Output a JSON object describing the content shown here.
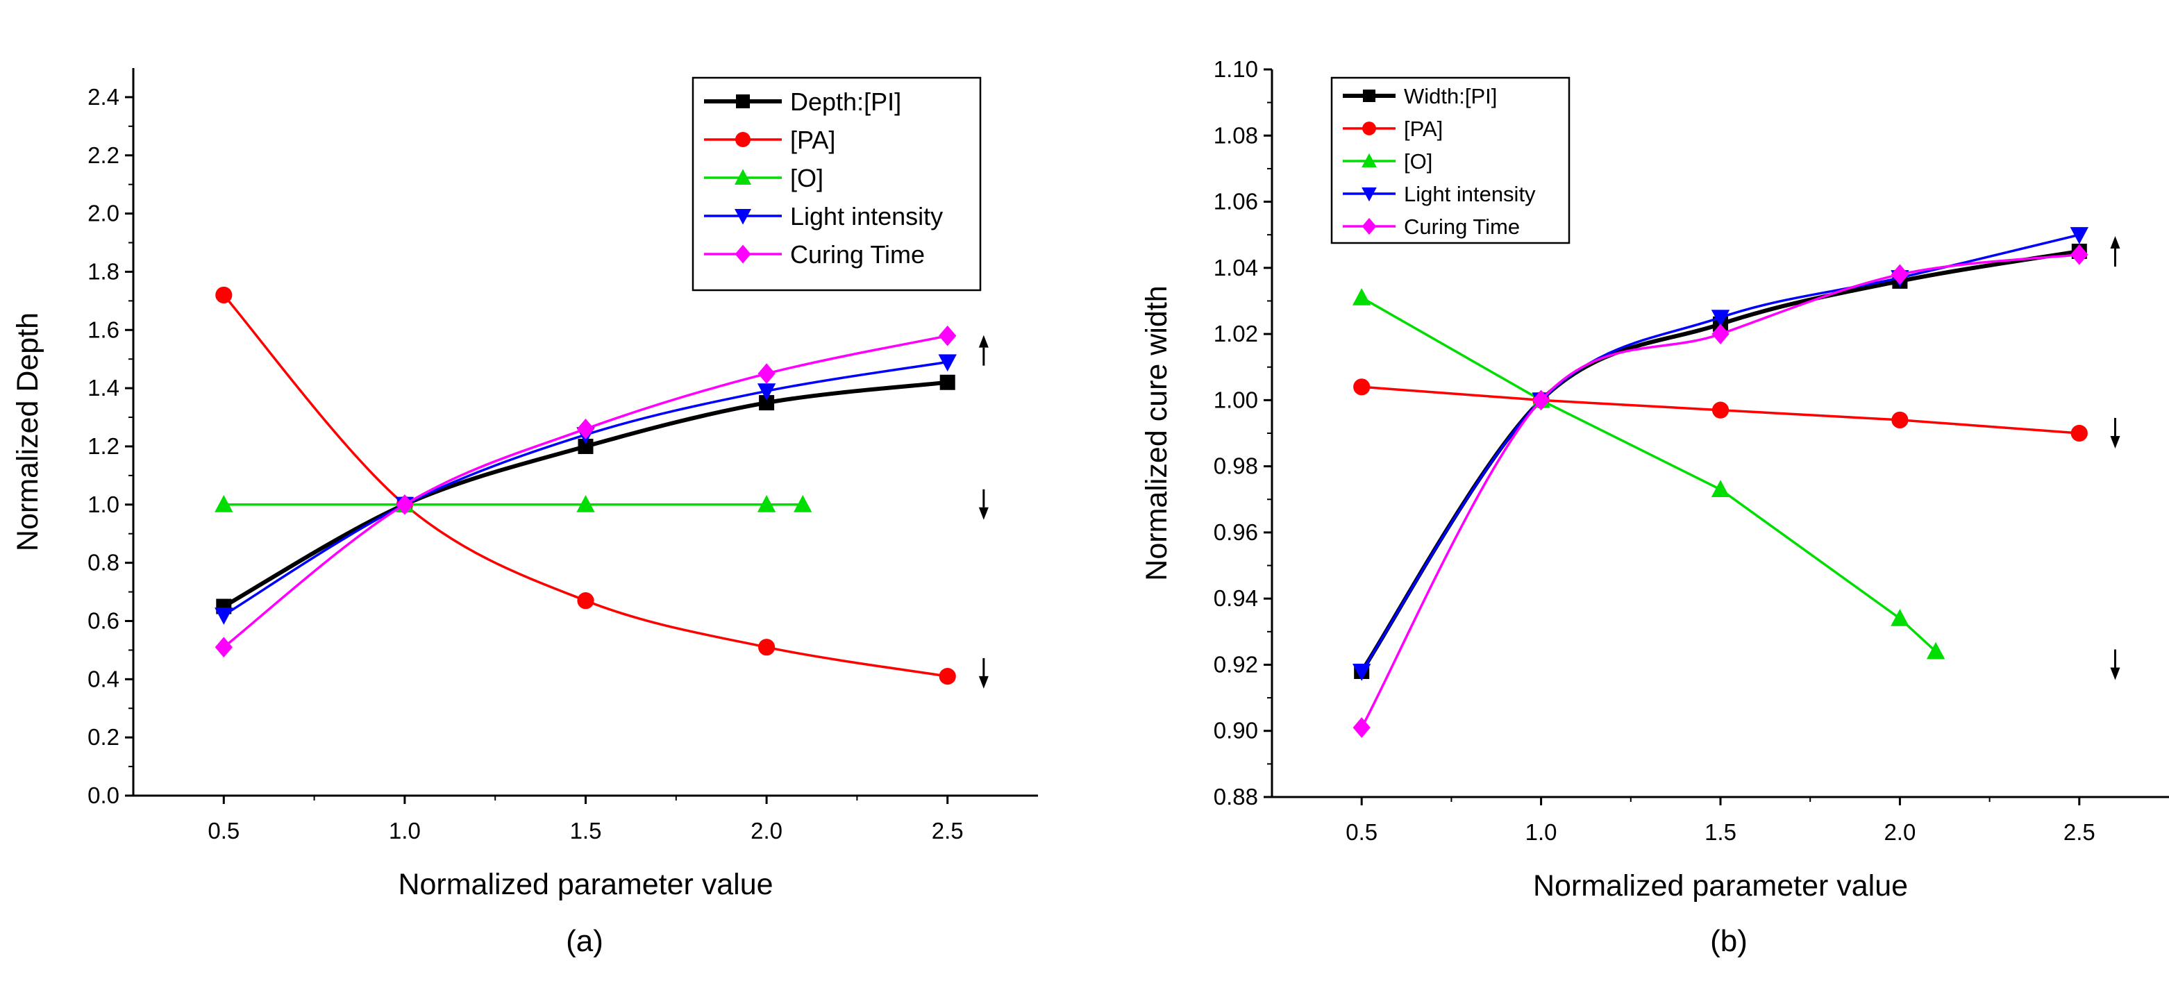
{
  "figure": {
    "panels": [
      "(a)",
      "(b)"
    ]
  },
  "chart_data": [
    {
      "type": "line",
      "panel_label": "(a)",
      "title": "",
      "xlabel": "Normalized parameter value",
      "ylabel": "Normalized Depth",
      "xlim": [
        0.25,
        2.75
      ],
      "ylim": [
        0.0,
        2.5
      ],
      "xticks": [
        0.5,
        1.0,
        1.5,
        2.0,
        2.5
      ],
      "xtick_labels": [
        "0.5",
        "1.0",
        "1.5",
        "2.0",
        "2.5"
      ],
      "yticks": [
        0.0,
        0.2,
        0.4,
        0.6,
        0.8,
        1.0,
        1.2,
        1.4,
        1.6,
        1.8,
        2.0,
        2.2,
        2.4
      ],
      "ytick_labels": [
        "0.0",
        "0.2",
        "0.4",
        "0.6",
        "0.8",
        "1.0",
        "1.2",
        "1.4",
        "1.6",
        "1.8",
        "2.0",
        "2.2",
        "2.4"
      ],
      "grid": false,
      "legend_position": "top-right",
      "series": [
        {
          "name": "Depth:[PI]",
          "color": "#000000",
          "marker": "square",
          "smooth": true,
          "x": [
            0.5,
            1.0,
            1.5,
            2.0,
            2.5
          ],
          "y": [
            0.65,
            1.0,
            1.2,
            1.35,
            1.42
          ]
        },
        {
          "name": "[PA]",
          "color": "#ff0000",
          "marker": "circle",
          "smooth": true,
          "x": [
            0.5,
            1.0,
            1.5,
            2.0,
            2.5
          ],
          "y": [
            1.72,
            1.0,
            0.67,
            0.51,
            0.41
          ]
        },
        {
          "name": "[O]",
          "color": "#00dd00",
          "marker": "triangle-up",
          "smooth": false,
          "x": [
            0.5,
            1.0,
            1.5,
            2.0,
            2.1
          ],
          "y": [
            1.0,
            1.0,
            1.0,
            1.0,
            1.0
          ]
        },
        {
          "name": "Light intensity",
          "color": "#0000ff",
          "marker": "triangle-down",
          "smooth": true,
          "x": [
            0.5,
            1.0,
            1.5,
            2.0,
            2.5
          ],
          "y": [
            0.62,
            1.0,
            1.24,
            1.39,
            1.49
          ]
        },
        {
          "name": "Curing Time",
          "color": "#ff00ff",
          "marker": "diamond",
          "smooth": true,
          "x": [
            0.5,
            1.0,
            1.5,
            2.0,
            2.5
          ],
          "y": [
            0.51,
            1.0,
            1.26,
            1.45,
            1.58
          ]
        }
      ],
      "annotations": [
        {
          "type": "arrow-up",
          "x": 2.6,
          "y": 1.53
        },
        {
          "type": "arrow-down",
          "x": 2.6,
          "y": 1.0
        },
        {
          "type": "arrow-down",
          "x": 2.6,
          "y": 0.42
        }
      ]
    },
    {
      "type": "line",
      "panel_label": "(b)",
      "title": "",
      "xlabel": "Normalized parameter value",
      "ylabel": "Normalized cure width",
      "xlim": [
        0.25,
        2.75
      ],
      "ylim": [
        0.88,
        1.1
      ],
      "xticks": [
        0.5,
        1.0,
        1.5,
        2.0,
        2.5
      ],
      "xtick_labels": [
        "0.5",
        "1.0",
        "1.5",
        "2.0",
        "2.5"
      ],
      "yticks": [
        0.88,
        0.9,
        0.92,
        0.94,
        0.96,
        0.98,
        1.0,
        1.02,
        1.04,
        1.06,
        1.08,
        1.1
      ],
      "ytick_labels": [
        "0.88",
        "0.90",
        "0.92",
        "0.94",
        "0.96",
        "0.98",
        "1.00",
        "1.02",
        "1.04",
        "1.06",
        "1.08",
        "1.10"
      ],
      "grid": false,
      "legend_position": "top-left",
      "series": [
        {
          "name": "Width:[PI]",
          "color": "#000000",
          "marker": "square",
          "smooth": true,
          "x": [
            0.5,
            1.0,
            1.5,
            2.0,
            2.5
          ],
          "y": [
            0.918,
            1.0,
            1.023,
            1.036,
            1.045
          ]
        },
        {
          "name": "[PA]",
          "color": "#ff0000",
          "marker": "circle",
          "smooth": false,
          "x": [
            0.5,
            1.0,
            1.5,
            2.0,
            2.5
          ],
          "y": [
            1.004,
            1.0,
            0.997,
            0.994,
            0.99
          ]
        },
        {
          "name": "[O]",
          "color": "#00dd00",
          "marker": "triangle-up",
          "smooth": false,
          "x": [
            0.5,
            1.0,
            1.5,
            2.0,
            2.1
          ],
          "y": [
            1.031,
            1.0,
            0.973,
            0.934,
            0.924
          ]
        },
        {
          "name": "Light intensity",
          "color": "#0000ff",
          "marker": "triangle-down",
          "smooth": true,
          "x": [
            0.5,
            1.0,
            1.5,
            2.0,
            2.5
          ],
          "y": [
            0.918,
            1.0,
            1.025,
            1.037,
            1.05
          ]
        },
        {
          "name": "Curing Time",
          "color": "#ff00ff",
          "marker": "diamond",
          "smooth": true,
          "x": [
            0.5,
            1.0,
            1.5,
            2.0,
            2.5
          ],
          "y": [
            0.901,
            1.0,
            1.02,
            1.038,
            1.044
          ]
        }
      ],
      "annotations": [
        {
          "type": "arrow-up",
          "x": 2.6,
          "y": 1.045
        },
        {
          "type": "arrow-down",
          "x": 2.6,
          "y": 0.99
        },
        {
          "type": "arrow-down",
          "x": 2.6,
          "y": 0.92
        }
      ]
    }
  ]
}
